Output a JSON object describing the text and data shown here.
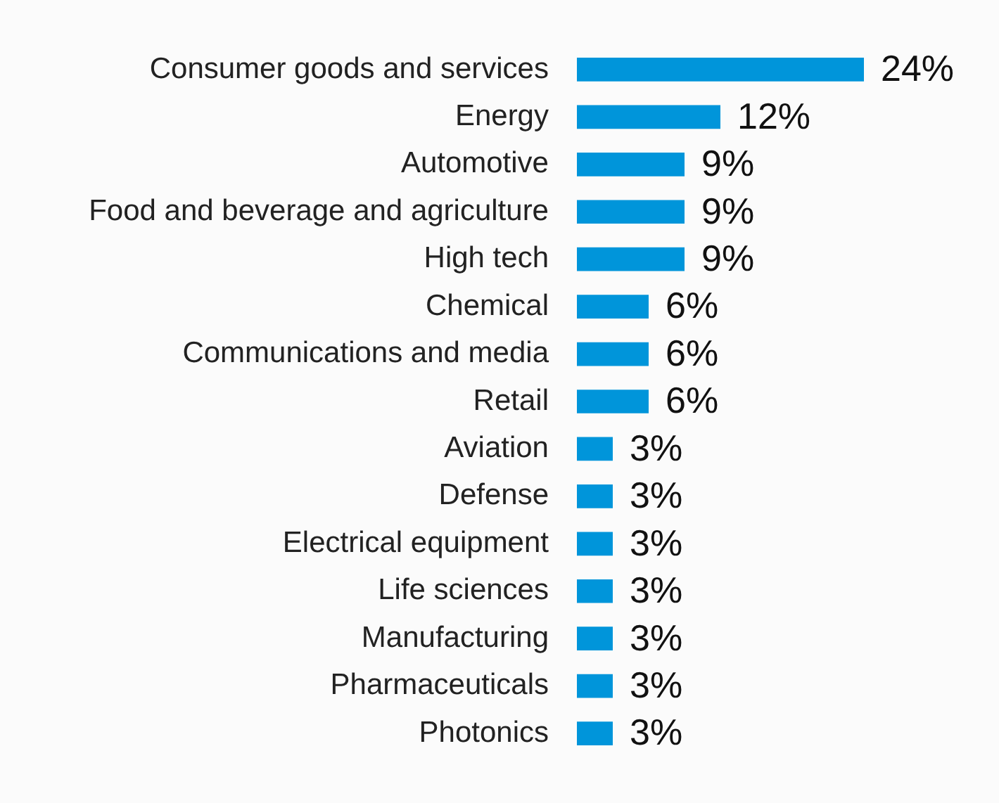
{
  "chart_data": {
    "type": "bar",
    "orientation": "horizontal",
    "categories": [
      "Consumer goods and services",
      "Energy",
      "Automotive",
      "Food and beverage and agriculture",
      "High tech",
      "Chemical",
      "Communications and media",
      "Retail",
      "Aviation",
      "Defense",
      "Electrical equipment",
      "Life sciences",
      "Manufacturing",
      "Pharmaceuticals",
      "Photonics"
    ],
    "values": [
      24,
      12,
      9,
      9,
      9,
      6,
      6,
      6,
      3,
      3,
      3,
      3,
      3,
      3,
      3
    ],
    "value_labels": [
      "24%",
      "12%",
      "9%",
      "9%",
      "9%",
      "6%",
      "6%",
      "6%",
      "3%",
      "3%",
      "3%",
      "3%",
      "3%",
      "3%",
      "3%"
    ],
    "color": "#0095da",
    "legend": false,
    "tick_labels": "y"
  }
}
